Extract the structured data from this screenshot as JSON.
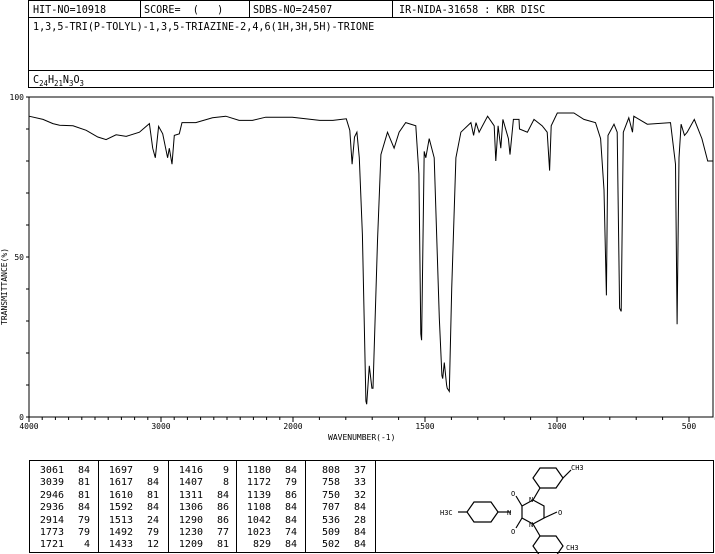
{
  "header": {
    "hit_no": "HIT-NO=10918",
    "score": "SCORE=  (   )",
    "sdbs_no": "SDBS-NO=24507",
    "ir_id": "IR-NIDA-31658 : KBR DISC",
    "compound_name": "1,3,5-TRI(P-TOLYL)-1,3,5-TRIAZINE-2,4,6(1H,3H,5H)-TRIONE",
    "formula": {
      "c": "C",
      "c_n": "24",
      "h": "H",
      "h_n": "21",
      "n": "N",
      "n_n": "3",
      "o": "O",
      "o_n": "3"
    }
  },
  "chart_data": {
    "type": "line",
    "xlabel": "WAVENUMBER(-1)",
    "ylabel": "TRANSMITTANCE(%)",
    "xlim": [
      4000,
      400
    ],
    "ylim": [
      0,
      100
    ],
    "x_scale_note": "x axis scale doubles below 2000",
    "xticks": [
      4000,
      3000,
      2000,
      1500,
      1000,
      500
    ],
    "yticks": [
      0,
      50,
      100
    ],
    "grid": false,
    "line_color": "#000000",
    "series": [
      {
        "points": [
          [
            4000,
            94
          ],
          [
            3894,
            93
          ],
          [
            3819,
            91.7
          ],
          [
            3768,
            91.2
          ],
          [
            3667,
            91
          ],
          [
            3567,
            89.6
          ],
          [
            3479,
            87.5
          ],
          [
            3416,
            86.7
          ],
          [
            3340,
            88.2
          ],
          [
            3264,
            87.7
          ],
          [
            3164,
            89
          ],
          [
            3088,
            91.7
          ],
          [
            3063,
            84
          ],
          [
            3043,
            81
          ],
          [
            3018,
            90.8
          ],
          [
            2987,
            88.5
          ],
          [
            2950,
            81
          ],
          [
            2937,
            84
          ],
          [
            2917,
            79
          ],
          [
            2899,
            88
          ],
          [
            2861,
            88.5
          ],
          [
            2841,
            92
          ],
          [
            2736,
            92
          ],
          [
            2610,
            93.5
          ],
          [
            2509,
            94
          ],
          [
            2408,
            92.7
          ],
          [
            2307,
            92.7
          ],
          [
            2207,
            93.7
          ],
          [
            2005,
            93.7
          ],
          [
            1899,
            92.7
          ],
          [
            1849,
            92.7
          ],
          [
            1798,
            93.2
          ],
          [
            1785,
            89.6
          ],
          [
            1776,
            79
          ],
          [
            1767,
            87.5
          ],
          [
            1758,
            89
          ],
          [
            1749,
            81
          ],
          [
            1737,
            57
          ],
          [
            1724,
            5
          ],
          [
            1721,
            4
          ],
          [
            1711,
            16
          ],
          [
            1701,
            9
          ],
          [
            1697,
            9
          ],
          [
            1680,
            55
          ],
          [
            1667,
            82
          ],
          [
            1642,
            89
          ],
          [
            1617,
            84
          ],
          [
            1598,
            89
          ],
          [
            1573,
            92
          ],
          [
            1535,
            91
          ],
          [
            1523,
            76
          ],
          [
            1516,
            26
          ],
          [
            1513,
            24
          ],
          [
            1503,
            83
          ],
          [
            1497,
            81
          ],
          [
            1484,
            87
          ],
          [
            1465,
            81
          ],
          [
            1446,
            31
          ],
          [
            1436,
            13
          ],
          [
            1433,
            12
          ],
          [
            1427,
            17
          ],
          [
            1418,
            10
          ],
          [
            1416,
            9
          ],
          [
            1408,
            8
          ],
          [
            1399,
            40
          ],
          [
            1383,
            81
          ],
          [
            1364,
            89
          ],
          [
            1326,
            92
          ],
          [
            1316,
            88
          ],
          [
            1307,
            92
          ],
          [
            1295,
            89
          ],
          [
            1263,
            94
          ],
          [
            1238,
            91
          ],
          [
            1232,
            80
          ],
          [
            1223,
            91
          ],
          [
            1213,
            84
          ],
          [
            1205,
            93
          ],
          [
            1184,
            87
          ],
          [
            1178,
            82
          ],
          [
            1165,
            93
          ],
          [
            1144,
            93
          ],
          [
            1142,
            90
          ],
          [
            1112,
            89
          ],
          [
            1087,
            93
          ],
          [
            1056,
            91
          ],
          [
            1037,
            89
          ],
          [
            1028,
            77
          ],
          [
            1022,
            91
          ],
          [
            999,
            95
          ],
          [
            936,
            95
          ],
          [
            898,
            93
          ],
          [
            854,
            92
          ],
          [
            835,
            87
          ],
          [
            822,
            71
          ],
          [
            813,
            38
          ],
          [
            807,
            88
          ],
          [
            784,
            91.5
          ],
          [
            772,
            89
          ],
          [
            763,
            34
          ],
          [
            757,
            33
          ],
          [
            749,
            89
          ],
          [
            728,
            93.5
          ],
          [
            714,
            89
          ],
          [
            709,
            94
          ],
          [
            658,
            91.5
          ],
          [
            570,
            92
          ],
          [
            551,
            79
          ],
          [
            545,
            29
          ],
          [
            538,
            81
          ],
          [
            530,
            91.5
          ],
          [
            517,
            88
          ],
          [
            507,
            89
          ],
          [
            480,
            93
          ],
          [
            451,
            87
          ],
          [
            429,
            80
          ],
          [
            410,
            80
          ]
        ]
      }
    ]
  },
  "peak_table": {
    "columns": [
      [
        [
          "3061",
          "84"
        ],
        [
          "3039",
          "81"
        ],
        [
          "2946",
          "81"
        ],
        [
          "2936",
          "84"
        ],
        [
          "2914",
          "79"
        ],
        [
          "1773",
          "79"
        ],
        [
          "1721",
          "4"
        ]
      ],
      [
        [
          "1697",
          "9"
        ],
        [
          "1617",
          "84"
        ],
        [
          "1610",
          "81"
        ],
        [
          "1592",
          "84"
        ],
        [
          "1513",
          "24"
        ],
        [
          "1492",
          "79"
        ],
        [
          "1433",
          "12"
        ]
      ],
      [
        [
          "1416",
          "9"
        ],
        [
          "1407",
          "8"
        ],
        [
          "1311",
          "84"
        ],
        [
          "1306",
          "86"
        ],
        [
          "1290",
          "86"
        ],
        [
          "1230",
          "77"
        ],
        [
          "1209",
          "81"
        ]
      ],
      [
        [
          "1180",
          "84"
        ],
        [
          "1172",
          "79"
        ],
        [
          "1139",
          "86"
        ],
        [
          "1108",
          "84"
        ],
        [
          "1042",
          "84"
        ],
        [
          "1023",
          "74"
        ],
        [
          "829",
          "84"
        ]
      ],
      [
        [
          "808",
          "37"
        ],
        [
          "758",
          "33"
        ],
        [
          "750",
          "32"
        ],
        [
          "707",
          "84"
        ],
        [
          "536",
          "28"
        ],
        [
          "509",
          "84"
        ],
        [
          "502",
          "84"
        ]
      ]
    ]
  },
  "structure": {
    "labels": {
      "o": "O",
      "n": "N",
      "ch3": "CH3",
      "h3c": "H3C"
    }
  }
}
